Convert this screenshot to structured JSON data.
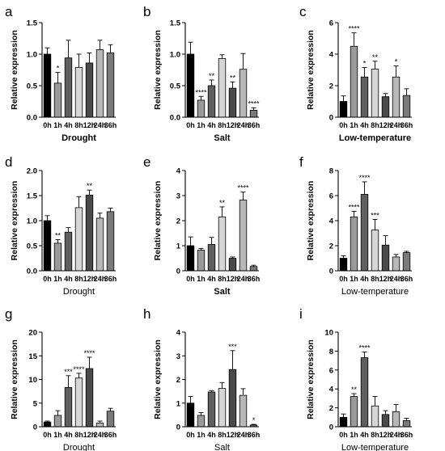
{
  "figure": {
    "panel_letters": [
      "a",
      "b",
      "c",
      "d",
      "e",
      "f",
      "g",
      "h",
      "i"
    ],
    "y_axis_label": "Relative expression"
  },
  "colors": {
    "bar_fills": [
      "#000000",
      "#9a9a9a",
      "#5f5f5f",
      "#d6d6d6",
      "#4a4a4a",
      "#b8b8b8",
      "#7a7a7a"
    ],
    "bar_stroke": "#000000",
    "text": "#000000"
  },
  "chart_data": [
    {
      "type": "bar",
      "panel": "a",
      "xlabel": "Drought",
      "xlabel_bold": true,
      "ylabel": "Relative expression",
      "categories": [
        "0h",
        "1h",
        "4h",
        "8h",
        "12h",
        "24h",
        "36h"
      ],
      "values": [
        1.0,
        0.54,
        0.94,
        0.79,
        0.86,
        1.07,
        1.02
      ],
      "errors": [
        0.1,
        0.17,
        0.28,
        0.21,
        0.16,
        0.15,
        0.13
      ],
      "significance": [
        "",
        "*",
        "",
        "",
        "",
        "",
        ""
      ],
      "ylim": [
        0,
        1.5
      ],
      "yticks": [
        0,
        0.5,
        1.0,
        1.5
      ],
      "ytick_labels": [
        "0.0",
        "0.5",
        "1.0",
        "1.5"
      ]
    },
    {
      "type": "bar",
      "panel": "b",
      "xlabel": "Salt",
      "xlabel_bold": true,
      "ylabel": "Relative expression",
      "categories": [
        "0h",
        "1h",
        "4h",
        "8h",
        "12h",
        "24h",
        "36h"
      ],
      "values": [
        1.0,
        0.27,
        0.5,
        0.93,
        0.46,
        0.76,
        0.11
      ],
      "errors": [
        0.19,
        0.06,
        0.09,
        0.06,
        0.1,
        0.25,
        0.04
      ],
      "significance": [
        "",
        "****",
        "**",
        "",
        "**",
        "",
        "****"
      ],
      "ylim": [
        0,
        1.5
      ],
      "yticks": [
        0,
        0.5,
        1.0,
        1.5
      ],
      "ytick_labels": [
        "0.0",
        "0.5",
        "1.0",
        "1.5"
      ]
    },
    {
      "type": "bar",
      "panel": "c",
      "xlabel": "Low-temperature",
      "xlabel_bold": true,
      "ylabel": "Relative expression",
      "categories": [
        "0h",
        "1h",
        "4h",
        "8h",
        "12h",
        "24h",
        "36h"
      ],
      "values": [
        1.0,
        4.5,
        2.55,
        3.05,
        1.3,
        2.55,
        1.38
      ],
      "errors": [
        0.35,
        0.85,
        0.6,
        0.5,
        0.2,
        0.7,
        0.42
      ],
      "significance": [
        "",
        "****",
        "*",
        "**",
        "",
        "*",
        ""
      ],
      "ylim": [
        0,
        6
      ],
      "yticks": [
        0,
        2,
        4,
        6
      ],
      "ytick_labels": [
        "0",
        "2",
        "4",
        "6"
      ]
    },
    {
      "type": "bar",
      "panel": "d",
      "xlabel": "Drought",
      "xlabel_bold": false,
      "ylabel": "Relative expression",
      "categories": [
        "0h",
        "1h",
        "4h",
        "8h",
        "12h",
        "24h",
        "36h"
      ],
      "values": [
        1.0,
        0.55,
        0.77,
        1.26,
        1.51,
        1.05,
        1.18
      ],
      "errors": [
        0.1,
        0.07,
        0.09,
        0.22,
        0.1,
        0.1,
        0.07
      ],
      "significance": [
        "",
        "**",
        "",
        "",
        "**",
        "",
        ""
      ],
      "ylim": [
        0,
        2.0
      ],
      "yticks": [
        0,
        0.5,
        1.0,
        1.5,
        2.0
      ],
      "ytick_labels": [
        "0.0",
        "0.5",
        "1.0",
        "1.5",
        "2.0"
      ]
    },
    {
      "type": "bar",
      "panel": "e",
      "xlabel": "Salt",
      "xlabel_bold": true,
      "ylabel": "Relative expression",
      "categories": [
        "0h",
        "1h",
        "4h",
        "8h",
        "12h",
        "24h",
        "36h"
      ],
      "values": [
        1.0,
        0.82,
        1.05,
        2.15,
        0.5,
        2.82,
        0.17
      ],
      "errors": [
        0.35,
        0.07,
        0.28,
        0.4,
        0.05,
        0.32,
        0.05
      ],
      "significance": [
        "",
        "",
        "",
        "**",
        "",
        "****",
        ""
      ],
      "ylim": [
        0,
        4
      ],
      "yticks": [
        0,
        1,
        2,
        3,
        4
      ],
      "ytick_labels": [
        "0",
        "1",
        "2",
        "3",
        "4"
      ]
    },
    {
      "type": "bar",
      "panel": "f",
      "xlabel": "Low-temperature",
      "xlabel_bold": false,
      "ylabel": "Relative expression",
      "categories": [
        "0h",
        "1h",
        "4h",
        "8h",
        "12h",
        "24h",
        "36h"
      ],
      "values": [
        1.0,
        4.3,
        6.1,
        3.25,
        2.05,
        1.1,
        1.45
      ],
      "errors": [
        0.2,
        0.45,
        1.0,
        0.85,
        0.75,
        0.2,
        0.1
      ],
      "significance": [
        "",
        "****",
        "****",
        "***",
        "",
        "",
        ""
      ],
      "ylim": [
        0,
        8
      ],
      "yticks": [
        0,
        2,
        4,
        6,
        8
      ],
      "ytick_labels": [
        "0",
        "2",
        "4",
        "6",
        "8"
      ]
    },
    {
      "type": "bar",
      "panel": "g",
      "xlabel": "Drought",
      "xlabel_bold": false,
      "ylabel": "Relative expression",
      "categories": [
        "0h",
        "1h",
        "4h",
        "8h",
        "12h",
        "24h",
        "36h"
      ],
      "values": [
        1.0,
        2.4,
        8.3,
        10.3,
        12.3,
        0.8,
        3.3
      ],
      "errors": [
        0.2,
        1.0,
        2.5,
        1.0,
        2.4,
        0.4,
        0.6
      ],
      "significance": [
        "",
        "",
        "***",
        "****",
        "****",
        "",
        ""
      ],
      "ylim": [
        0,
        20
      ],
      "yticks": [
        0,
        5,
        10,
        15,
        20
      ],
      "ytick_labels": [
        "0",
        "5",
        "10",
        "15",
        "20"
      ]
    },
    {
      "type": "bar",
      "panel": "h",
      "xlabel": "Salt",
      "xlabel_bold": false,
      "ylabel": "Relative expression",
      "categories": [
        "0h",
        "1h",
        "4h",
        "8h",
        "12h",
        "24h",
        "36h"
      ],
      "values": [
        1.0,
        0.48,
        1.47,
        1.62,
        2.42,
        1.33,
        0.07
      ],
      "errors": [
        0.28,
        0.12,
        0.06,
        0.25,
        0.8,
        0.28,
        0.03
      ],
      "significance": [
        "",
        "",
        "",
        "",
        "***",
        "",
        "*"
      ],
      "ylim": [
        0,
        4
      ],
      "yticks": [
        0,
        1,
        2,
        3,
        4
      ],
      "ytick_labels": [
        "0",
        "1",
        "2",
        "3",
        "4"
      ]
    },
    {
      "type": "bar",
      "panel": "i",
      "xlabel": "Low-temperature",
      "xlabel_bold": false,
      "ylabel": "Relative expression",
      "categories": [
        "0h",
        "1h",
        "4h",
        "8h",
        "12h",
        "24h",
        "36h"
      ],
      "values": [
        1.0,
        3.2,
        7.3,
        2.2,
        1.3,
        1.6,
        0.65
      ],
      "errors": [
        0.35,
        0.3,
        0.6,
        1.0,
        0.4,
        0.75,
        0.25
      ],
      "significance": [
        "",
        "**",
        "****",
        "",
        "",
        "",
        ""
      ],
      "ylim": [
        0,
        10
      ],
      "yticks": [
        0,
        2,
        4,
        6,
        8,
        10
      ],
      "ytick_labels": [
        "0",
        "2",
        "4",
        "6",
        "8",
        "10"
      ]
    }
  ]
}
